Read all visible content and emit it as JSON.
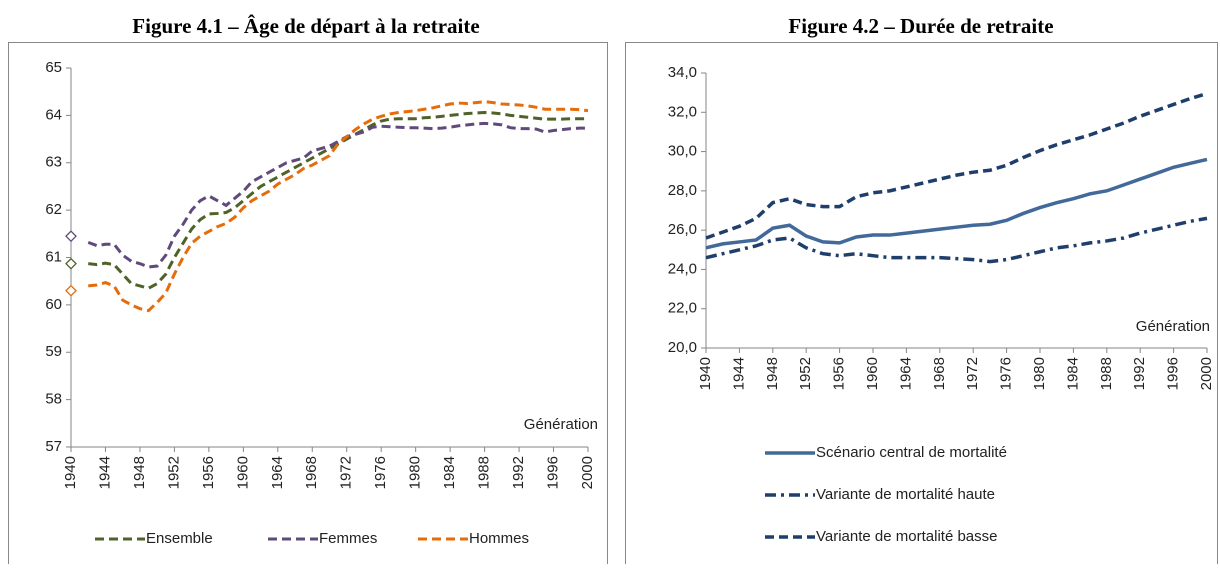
{
  "chart_data": [
    {
      "type": "line",
      "title": "Figure 4.1 – Âge de départ à la retraite",
      "x_label": "Génération",
      "x": [
        1940,
        1941,
        1942,
        1943,
        1944,
        1945,
        1946,
        1947,
        1948,
        1949,
        1950,
        1951,
        1952,
        1953,
        1954,
        1955,
        1956,
        1957,
        1958,
        1959,
        1960,
        1961,
        1962,
        1963,
        1964,
        1965,
        1966,
        1967,
        1968,
        1969,
        1970,
        1971,
        1972,
        1973,
        1974,
        1975,
        1976,
        1977,
        1978,
        1979,
        1980,
        1981,
        1982,
        1983,
        1984,
        1985,
        1986,
        1987,
        1988,
        1989,
        1990,
        1991,
        1992,
        1993,
        1994,
        1995,
        1996,
        1997,
        1998,
        1999,
        2000
      ],
      "xlim": [
        1940,
        2000
      ],
      "xticks": [
        1940,
        1944,
        1948,
        1952,
        1956,
        1960,
        1964,
        1968,
        1972,
        1976,
        1980,
        1984,
        1988,
        1992,
        1996,
        2000
      ],
      "ylim": [
        57,
        65
      ],
      "yticks": [
        57,
        58,
        59,
        60,
        61,
        62,
        63,
        64,
        65
      ],
      "grid": false,
      "legend": "bottom",
      "series": [
        {
          "name": "Ensemble",
          "color": "#4f6228",
          "dash": "dash",
          "values": [
            60.87,
            null,
            60.87,
            60.85,
            60.88,
            60.85,
            60.65,
            60.45,
            60.4,
            60.35,
            60.45,
            60.65,
            61.0,
            61.3,
            61.6,
            61.8,
            61.92,
            61.93,
            61.95,
            62.05,
            62.2,
            62.35,
            62.5,
            62.6,
            62.7,
            62.8,
            62.9,
            63.0,
            63.1,
            63.2,
            63.3,
            63.4,
            63.5,
            63.6,
            63.7,
            63.8,
            63.88,
            63.92,
            63.93,
            63.93,
            63.93,
            63.95,
            63.96,
            63.98,
            64.0,
            64.02,
            64.04,
            64.05,
            64.06,
            64.05,
            64.03,
            64.0,
            63.98,
            63.96,
            63.94,
            63.92,
            63.92,
            63.92,
            63.93,
            63.93,
            63.93
          ]
        },
        {
          "name": "Femmes",
          "color": "#604a7b",
          "dash": "dash",
          "values": [
            61.45,
            null,
            61.32,
            61.25,
            61.28,
            61.28,
            61.05,
            60.92,
            60.87,
            60.8,
            60.82,
            61.05,
            61.45,
            61.7,
            62.0,
            62.2,
            62.3,
            62.2,
            62.1,
            62.25,
            62.4,
            62.6,
            62.7,
            62.8,
            62.9,
            63.0,
            63.05,
            63.1,
            63.25,
            63.3,
            63.35,
            63.45,
            63.55,
            63.6,
            63.65,
            63.75,
            63.77,
            63.76,
            63.75,
            63.74,
            63.74,
            63.73,
            63.72,
            63.73,
            63.75,
            63.78,
            63.8,
            63.82,
            63.83,
            63.82,
            63.8,
            63.74,
            63.72,
            63.72,
            63.71,
            63.65,
            63.68,
            63.7,
            63.72,
            63.73,
            63.73
          ]
        },
        {
          "name": "Hommes",
          "color": "#e46c0a",
          "dash": "dash",
          "values": [
            60.3,
            null,
            60.4,
            60.42,
            60.47,
            60.4,
            60.1,
            60.0,
            59.92,
            59.88,
            60.05,
            60.25,
            60.65,
            61.0,
            61.3,
            61.45,
            61.55,
            61.65,
            61.72,
            61.85,
            62.05,
            62.2,
            62.3,
            62.4,
            62.55,
            62.65,
            62.75,
            62.88,
            62.95,
            63.05,
            63.15,
            63.4,
            63.55,
            63.7,
            63.82,
            63.92,
            63.98,
            64.03,
            64.06,
            64.08,
            64.1,
            64.13,
            64.16,
            64.2,
            64.24,
            64.26,
            64.25,
            64.27,
            64.29,
            64.27,
            64.24,
            64.23,
            64.22,
            64.2,
            64.17,
            64.13,
            64.13,
            64.13,
            64.13,
            64.12,
            64.1
          ]
        }
      ]
    },
    {
      "type": "line",
      "title": "Figure 4.2 – Durée de retraite",
      "x_label": "Génération",
      "x": [
        1940,
        1942,
        1944,
        1946,
        1948,
        1950,
        1952,
        1954,
        1956,
        1958,
        1960,
        1962,
        1964,
        1966,
        1968,
        1970,
        1972,
        1974,
        1976,
        1978,
        1980,
        1982,
        1984,
        1986,
        1988,
        1990,
        1992,
        1994,
        1996,
        1998,
        2000
      ],
      "xlim": [
        1940,
        2000
      ],
      "xticks": [
        1940,
        1944,
        1948,
        1952,
        1956,
        1960,
        1964,
        1968,
        1972,
        1976,
        1980,
        1984,
        1988,
        1992,
        1996,
        2000
      ],
      "ylim": [
        20,
        34
      ],
      "yticks": [
        {
          "value": 20,
          "label": "20,0"
        },
        {
          "value": 22,
          "label": "22,0"
        },
        {
          "value": 24,
          "label": "24,0"
        },
        {
          "value": 26,
          "label": "26,0"
        },
        {
          "value": 28,
          "label": "28,0"
        },
        {
          "value": 30,
          "label": "30,0"
        },
        {
          "value": 32,
          "label": "32,0"
        },
        {
          "value": 34,
          "label": "34,0"
        }
      ],
      "grid": false,
      "legend": "bottom",
      "series": [
        {
          "name": "Scénario central de mortalité",
          "color": "#41699a",
          "dash": "solid",
          "values": [
            25.1,
            25.3,
            25.4,
            25.5,
            26.1,
            26.25,
            25.7,
            25.4,
            25.35,
            25.65,
            25.75,
            25.75,
            25.85,
            25.95,
            26.05,
            26.15,
            26.25,
            26.3,
            26.5,
            26.85,
            27.15,
            27.4,
            27.6,
            27.85,
            28.0,
            28.3,
            28.6,
            28.9,
            29.2,
            29.4,
            29.6
          ]
        },
        {
          "name": "Variante de mortalité haute",
          "color": "#1f3e6b",
          "dash": "dashdot",
          "values": [
            24.6,
            24.8,
            25.0,
            25.2,
            25.5,
            25.6,
            25.1,
            24.8,
            24.7,
            24.8,
            24.7,
            24.6,
            24.6,
            24.6,
            24.6,
            24.55,
            24.5,
            24.4,
            24.5,
            24.7,
            24.9,
            25.1,
            25.2,
            25.35,
            25.45,
            25.6,
            25.85,
            26.05,
            26.25,
            26.45,
            26.6
          ]
        },
        {
          "name": "Variante de mortalité basse",
          "color": "#1f3e6b",
          "dash": "dash",
          "values": [
            25.6,
            25.9,
            26.2,
            26.6,
            27.4,
            27.6,
            27.3,
            27.2,
            27.2,
            27.7,
            27.9,
            28.0,
            28.2,
            28.4,
            28.6,
            28.8,
            28.95,
            29.05,
            29.3,
            29.7,
            30.05,
            30.35,
            30.6,
            30.85,
            31.15,
            31.45,
            31.8,
            32.1,
            32.4,
            32.7,
            32.95
          ]
        }
      ]
    }
  ]
}
